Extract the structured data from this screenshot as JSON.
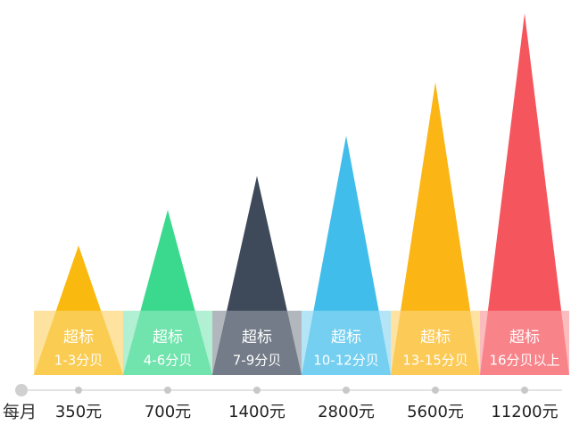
{
  "label": "每月",
  "items": [
    {
      "line1": "超标",
      "line2": "1-3分贝",
      "amount": "350元"
    },
    {
      "line1": "超标",
      "line2": "4-6分贝",
      "amount": "700元"
    },
    {
      "line1": "超标",
      "line2": "7-9分贝",
      "amount": "1400元"
    },
    {
      "line1": "超标",
      "line2": "10-12分贝",
      "amount": "2800元"
    },
    {
      "line1": "超标",
      "line2": "13-15分贝",
      "amount": "5600元"
    },
    {
      "line1": "超标",
      "line2": "16分贝以上",
      "amount": "11200元"
    }
  ]
}
